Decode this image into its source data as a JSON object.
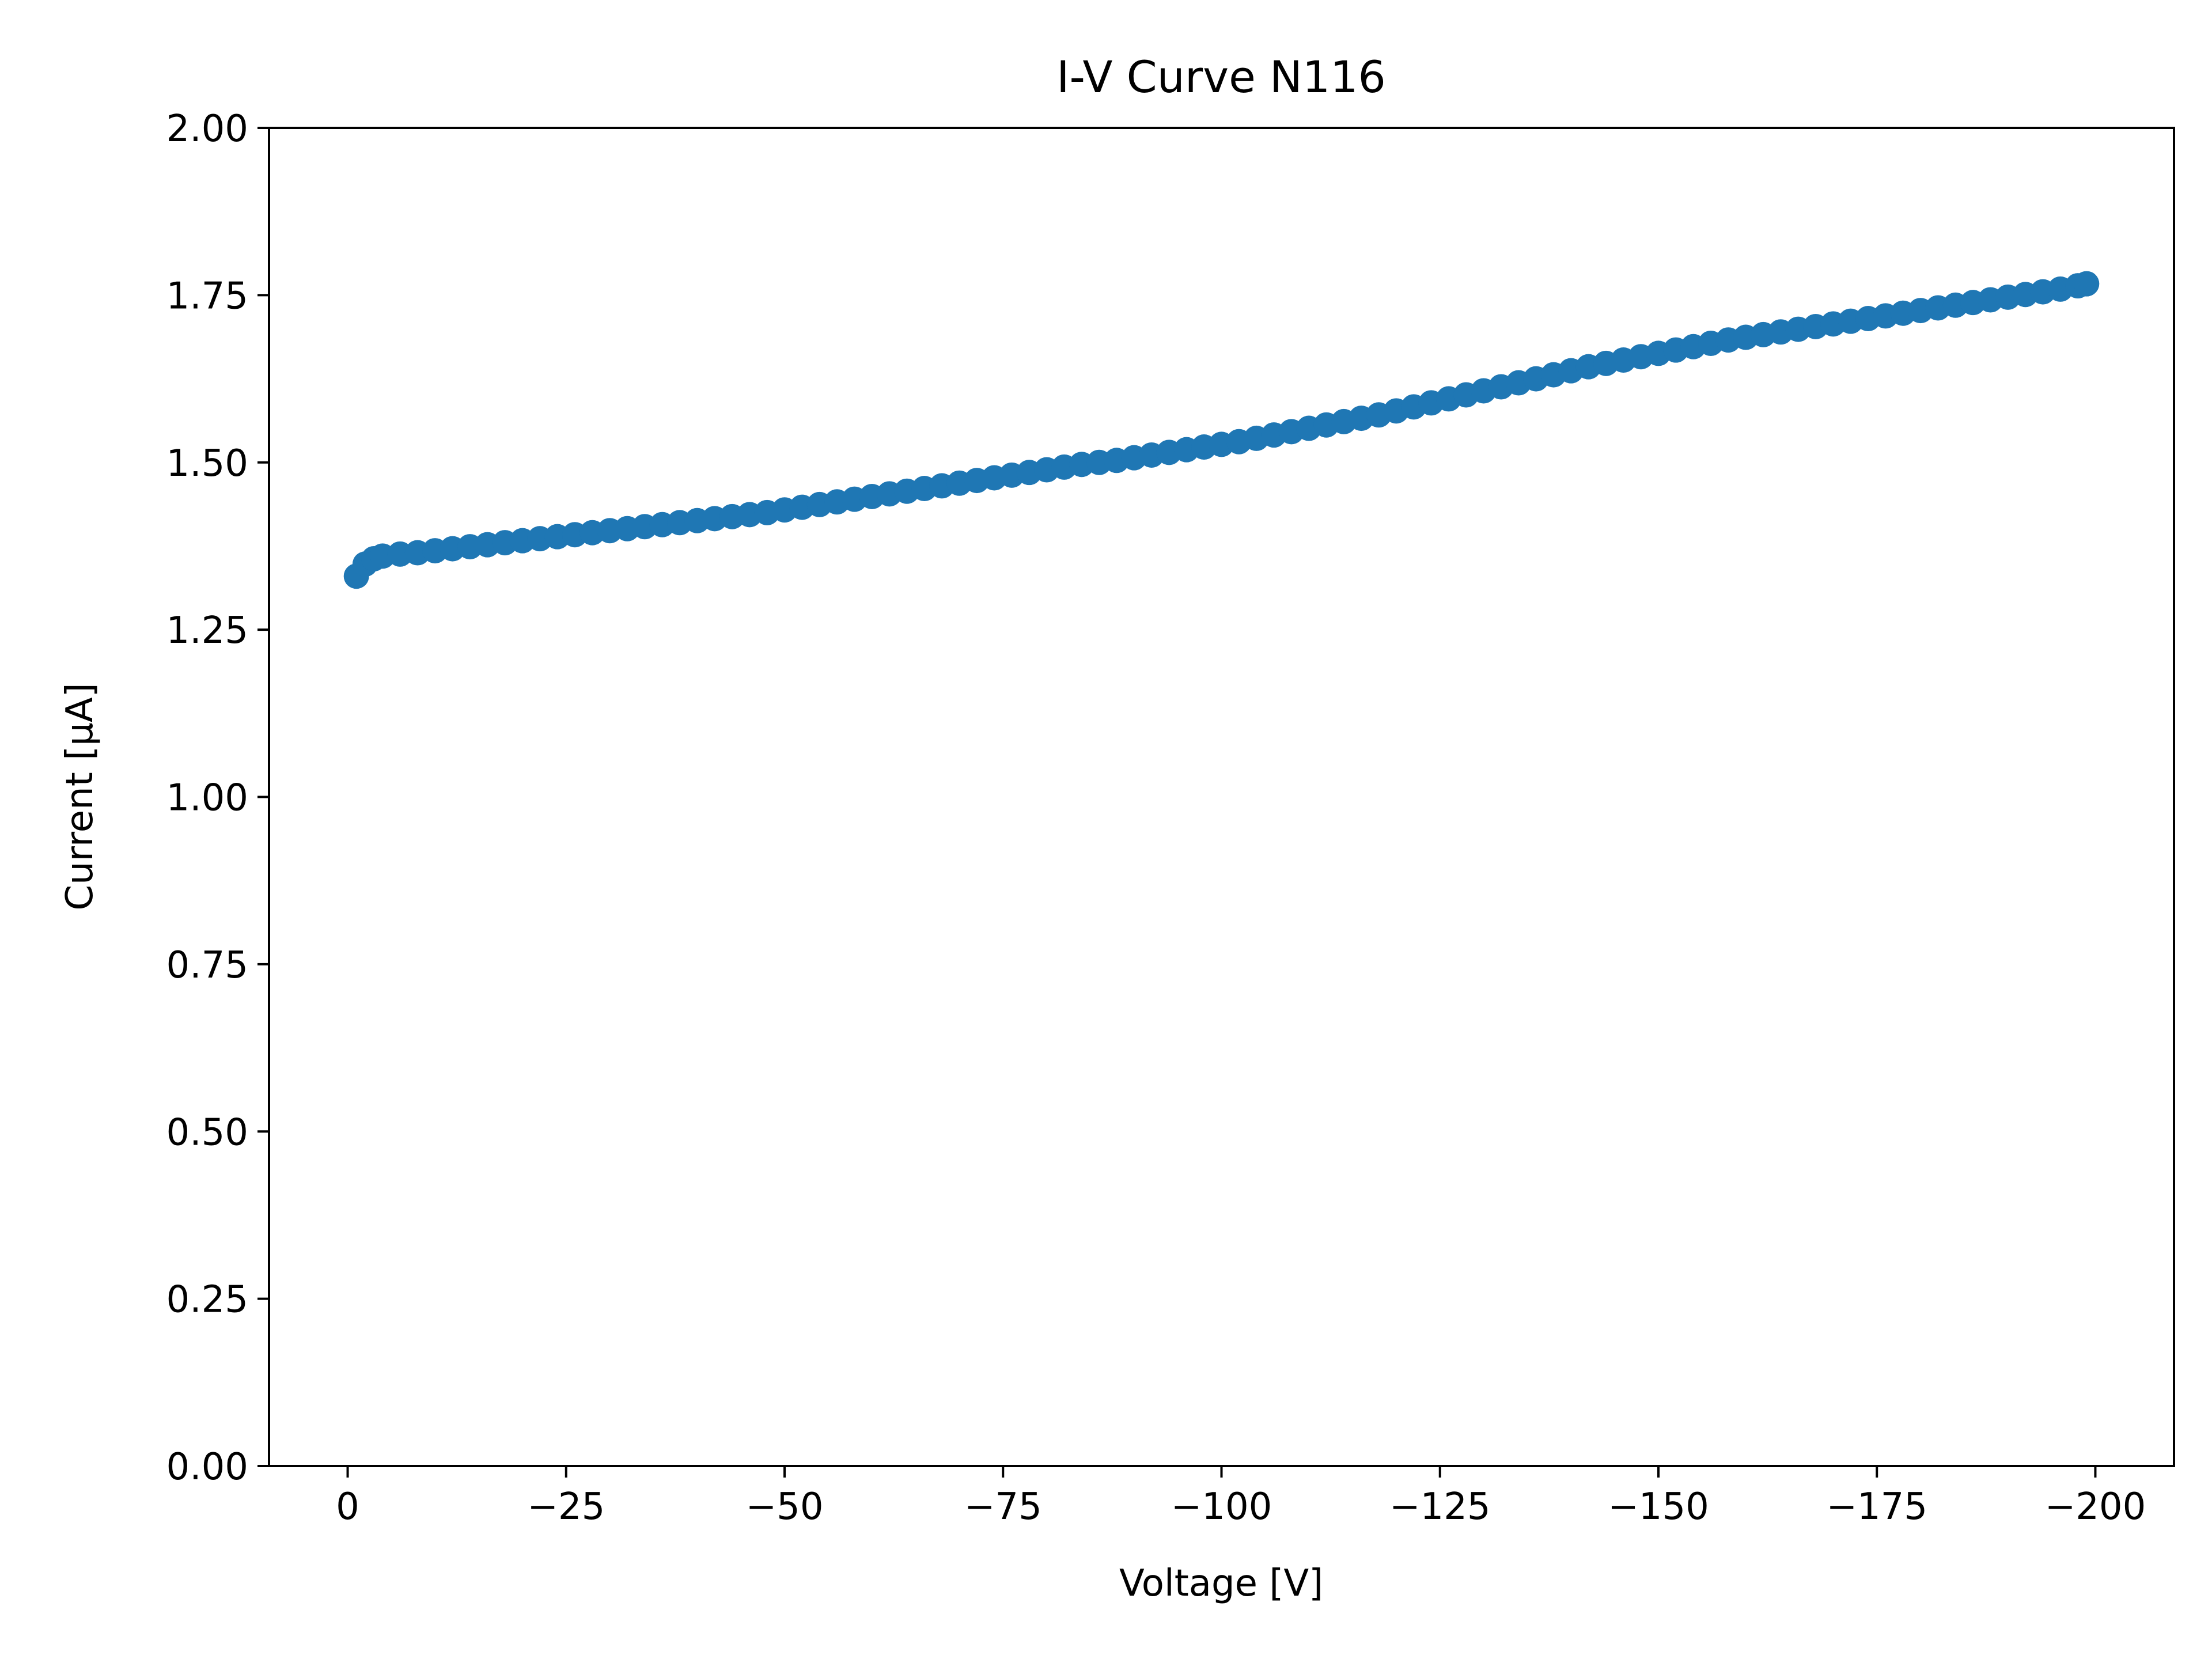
{
  "chart_data": {
    "type": "scatter",
    "title": "I-V Curve N116",
    "xlabel": "Voltage [V]",
    "ylabel": "Current [μA]",
    "xlim": [
      9,
      -209
    ],
    "ylim": [
      0,
      2
    ],
    "x_ticks": [
      0,
      -25,
      -50,
      -75,
      -100,
      -125,
      -150,
      -175,
      -200
    ],
    "x_tick_labels": [
      "0",
      "−25",
      "−50",
      "−75",
      "−100",
      "−125",
      "−150",
      "−175",
      "−200"
    ],
    "y_ticks": [
      0,
      0.25,
      0.5,
      0.75,
      1.0,
      1.25,
      1.5,
      1.75,
      2.0
    ],
    "y_tick_labels": [
      "0.00",
      "0.25",
      "0.50",
      "0.75",
      "1.00",
      "1.25",
      "1.50",
      "1.75",
      "2.00"
    ],
    "grid": false,
    "legend": "none",
    "marker_color": "#1f77b4",
    "series": [
      {
        "x": [
          -1,
          -2,
          -3,
          -4,
          -6,
          -8,
          -10,
          -12,
          -14,
          -16,
          -18,
          -20,
          -22,
          -24,
          -26,
          -28,
          -30,
          -32,
          -34,
          -36,
          -38,
          -40,
          -42,
          -44,
          -46,
          -48,
          -50,
          -52,
          -54,
          -56,
          -58,
          -60,
          -62,
          -64,
          -66,
          -68,
          -70,
          -72,
          -74,
          -76,
          -78,
          -80,
          -82,
          -84,
          -86,
          -88,
          -90,
          -92,
          -94,
          -96,
          -98,
          -100,
          -102,
          -104,
          -106,
          -108,
          -110,
          -112,
          -114,
          -116,
          -118,
          -120,
          -122,
          -124,
          -126,
          -128,
          -130,
          -132,
          -134,
          -136,
          -138,
          -140,
          -142,
          -144,
          -146,
          -148,
          -150,
          -152,
          -154,
          -156,
          -158,
          -160,
          -162,
          -164,
          -166,
          -168,
          -170,
          -172,
          -174,
          -176,
          -178,
          -180,
          -182,
          -184,
          -186,
          -188,
          -190,
          -192,
          -194,
          -196,
          -198,
          -199
        ],
        "y": [
          1.33,
          1.348,
          1.356,
          1.36,
          1.363,
          1.365,
          1.368,
          1.371,
          1.374,
          1.377,
          1.38,
          1.383,
          1.386,
          1.389,
          1.392,
          1.395,
          1.398,
          1.401,
          1.404,
          1.407,
          1.41,
          1.413,
          1.416,
          1.419,
          1.422,
          1.425,
          1.429,
          1.433,
          1.437,
          1.441,
          1.445,
          1.449,
          1.453,
          1.457,
          1.461,
          1.465,
          1.469,
          1.473,
          1.477,
          1.481,
          1.485,
          1.489,
          1.493,
          1.497,
          1.5,
          1.503,
          1.507,
          1.511,
          1.515,
          1.519,
          1.523,
          1.527,
          1.531,
          1.536,
          1.541,
          1.546,
          1.551,
          1.556,
          1.561,
          1.566,
          1.571,
          1.577,
          1.583,
          1.589,
          1.595,
          1.601,
          1.607,
          1.613,
          1.619,
          1.625,
          1.631,
          1.637,
          1.643,
          1.648,
          1.653,
          1.658,
          1.663,
          1.668,
          1.673,
          1.678,
          1.683,
          1.687,
          1.691,
          1.695,
          1.699,
          1.703,
          1.707,
          1.711,
          1.715,
          1.719,
          1.723,
          1.727,
          1.731,
          1.735,
          1.739,
          1.743,
          1.747,
          1.751,
          1.755,
          1.759,
          1.764,
          1.767
        ]
      }
    ]
  }
}
